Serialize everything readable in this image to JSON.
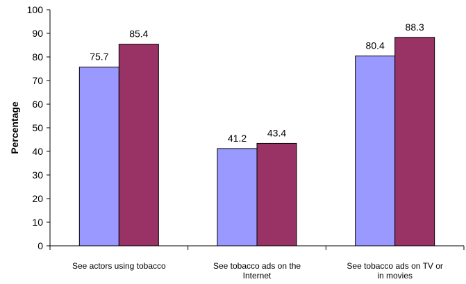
{
  "chart_data": {
    "type": "bar",
    "title": "",
    "xlabel": "",
    "ylabel": "Percentage",
    "ylim": [
      0,
      100
    ],
    "yticks": [
      0,
      10,
      20,
      30,
      40,
      50,
      60,
      70,
      80,
      90,
      100
    ],
    "grid": false,
    "categories": [
      [
        "See actors using tobacco"
      ],
      [
        "See tobacco ads on the",
        "Internet"
      ],
      [
        "See tobacco ads on TV or",
        "in movies"
      ]
    ],
    "series": [
      {
        "values": [
          75.7,
          41.2,
          80.4
        ],
        "color": "#9999ff"
      },
      {
        "values": [
          85.4,
          43.4,
          88.3
        ],
        "color": "#993366"
      }
    ],
    "value_labels": [
      [
        "75.7",
        "41.2",
        "80.4"
      ],
      [
        "85.4",
        "43.4",
        "88.3"
      ]
    ]
  }
}
